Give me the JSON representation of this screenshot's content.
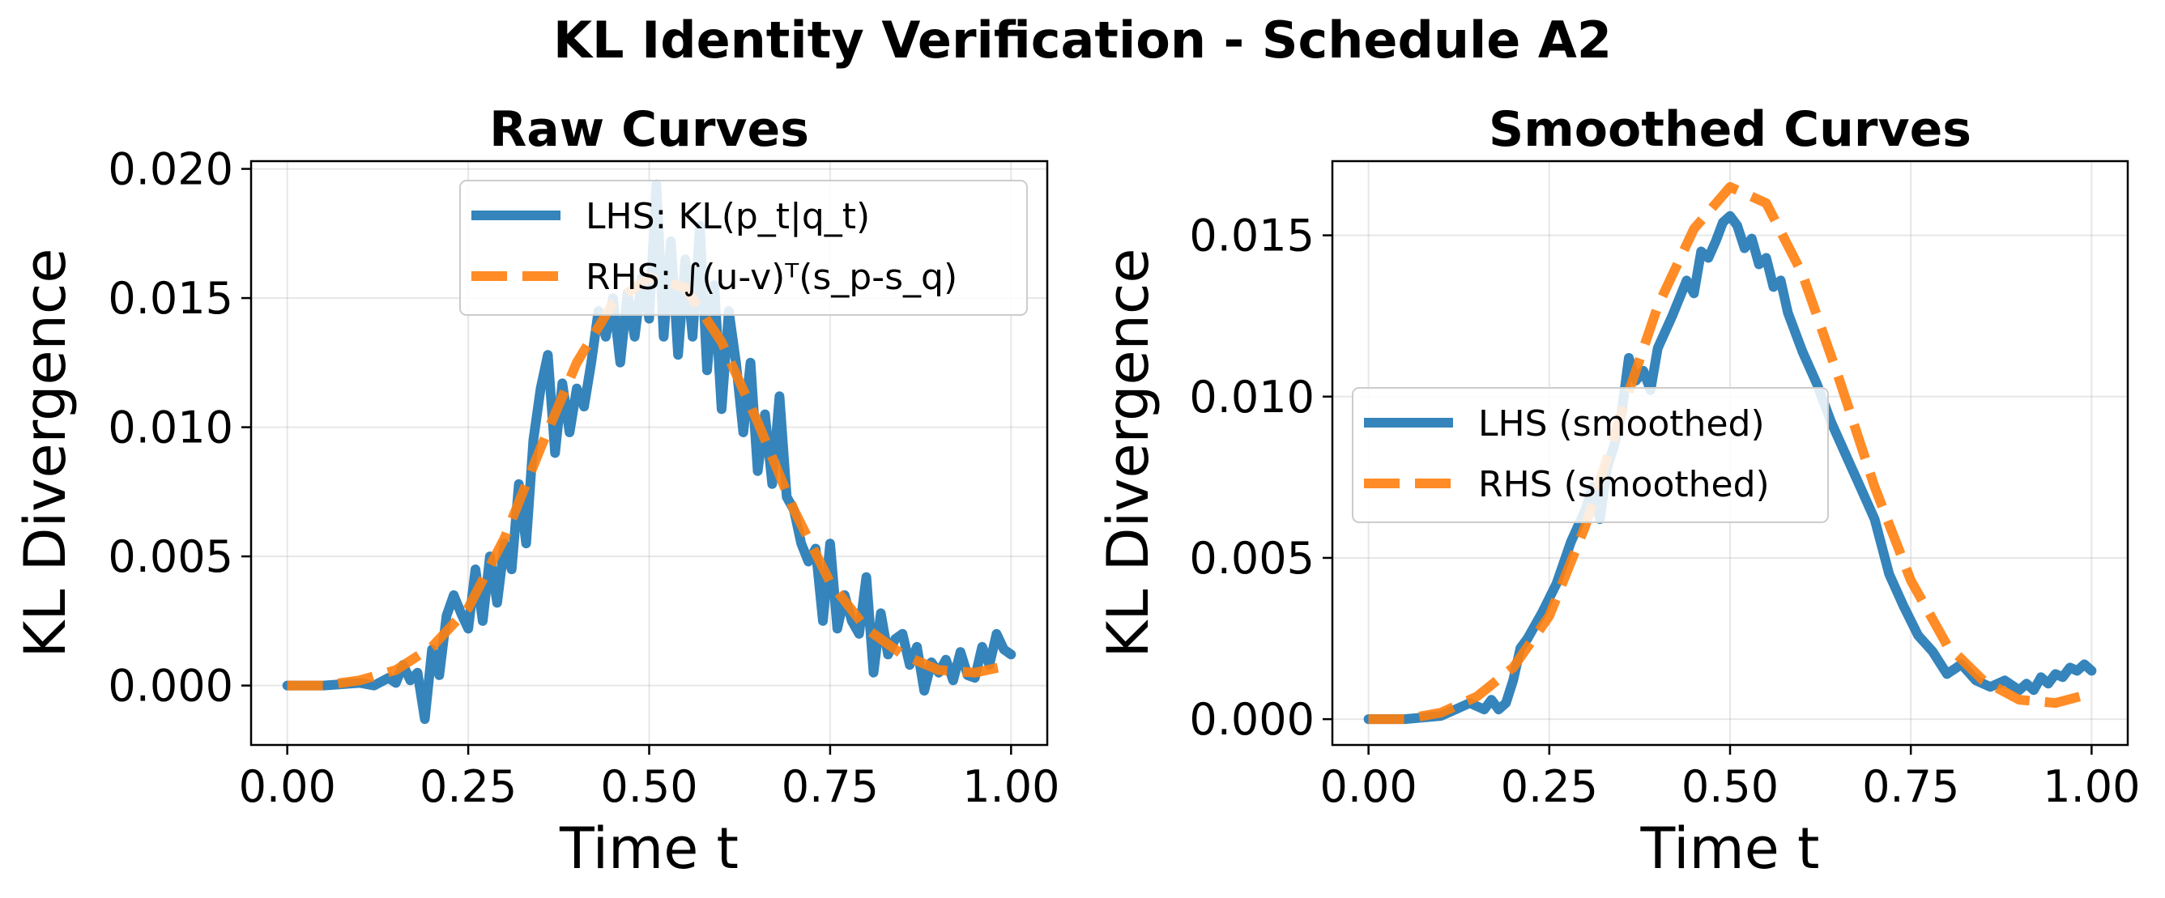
{
  "figure_title": "KL Identity Verification - Schedule A2",
  "colors": {
    "lhs": "#1f77b4",
    "rhs": "#ff7f0e"
  },
  "chart_data": [
    {
      "type": "line",
      "title": "Raw Curves",
      "xlabel": "Time t",
      "ylabel": "KL Divergence",
      "xlim": [
        -0.05,
        1.05
      ],
      "ylim": [
        -0.0023,
        0.0203
      ],
      "xticks": [
        "0.00",
        "0.25",
        "0.50",
        "0.75",
        "1.00"
      ],
      "xtick_values": [
        0,
        0.25,
        0.5,
        0.75,
        1.0
      ],
      "yticks": [
        "0.000",
        "0.005",
        "0.010",
        "0.015",
        "0.020"
      ],
      "ytick_values": [
        0,
        0.005,
        0.01,
        0.015,
        0.02
      ],
      "grid": true,
      "legend_position": "top-right",
      "series": [
        {
          "name": "LHS: KL(p_t|q_t)",
          "style": "solid",
          "x": [
            0,
            0.05,
            0.1,
            0.12,
            0.14,
            0.15,
            0.16,
            0.17,
            0.18,
            0.19,
            0.2,
            0.21,
            0.22,
            0.23,
            0.24,
            0.25,
            0.26,
            0.27,
            0.28,
            0.29,
            0.3,
            0.31,
            0.32,
            0.33,
            0.34,
            0.35,
            0.36,
            0.37,
            0.38,
            0.39,
            0.4,
            0.41,
            0.42,
            0.43,
            0.44,
            0.45,
            0.46,
            0.47,
            0.48,
            0.49,
            0.5,
            0.51,
            0.52,
            0.53,
            0.54,
            0.55,
            0.56,
            0.57,
            0.58,
            0.59,
            0.6,
            0.61,
            0.62,
            0.63,
            0.64,
            0.65,
            0.66,
            0.67,
            0.68,
            0.69,
            0.7,
            0.71,
            0.72,
            0.73,
            0.74,
            0.75,
            0.76,
            0.77,
            0.78,
            0.79,
            0.8,
            0.81,
            0.82,
            0.83,
            0.84,
            0.85,
            0.86,
            0.87,
            0.88,
            0.89,
            0.9,
            0.91,
            0.92,
            0.93,
            0.94,
            0.95,
            0.96,
            0.97,
            0.98,
            0.99,
            1.0
          ],
          "y": [
            0.0,
            0.0,
            0.0001,
            0.0,
            0.0003,
            0.0001,
            0.0008,
            0.0002,
            0.0005,
            -0.0013,
            0.0014,
            0.0004,
            0.0027,
            0.0035,
            0.0028,
            0.0022,
            0.0045,
            0.0025,
            0.005,
            0.0032,
            0.0055,
            0.0045,
            0.0078,
            0.0055,
            0.0095,
            0.0115,
            0.0128,
            0.009,
            0.0117,
            0.0098,
            0.0115,
            0.0108,
            0.0125,
            0.0145,
            0.0135,
            0.015,
            0.0125,
            0.0152,
            0.0135,
            0.0158,
            0.0142,
            0.0194,
            0.0135,
            0.0172,
            0.0128,
            0.0165,
            0.0135,
            0.0178,
            0.0122,
            0.0155,
            0.0107,
            0.0145,
            0.0125,
            0.0098,
            0.0125,
            0.0083,
            0.0105,
            0.0078,
            0.0112,
            0.0073,
            0.0068,
            0.0055,
            0.0048,
            0.0053,
            0.0025,
            0.0055,
            0.0022,
            0.0035,
            0.0025,
            0.002,
            0.0042,
            0.0005,
            0.0028,
            0.0012,
            0.0018,
            0.002,
            0.0008,
            0.0015,
            -0.0002,
            0.0009,
            0.0005,
            0.001,
            0.0002,
            0.0013,
            0.0004,
            0.0003,
            0.0015,
            0.0008,
            0.002,
            0.0014,
            0.0012
          ]
        },
        {
          "name": "RHS: ∫(u-v)ᵀ(s_p-s_q)",
          "style": "dashed",
          "x": [
            0,
            0.05,
            0.1,
            0.15,
            0.2,
            0.25,
            0.3,
            0.35,
            0.4,
            0.45,
            0.5,
            0.55,
            0.6,
            0.65,
            0.7,
            0.75,
            0.8,
            0.85,
            0.9,
            0.95,
            1.0
          ],
          "y": [
            0.0,
            0.0,
            0.0002,
            0.0006,
            0.0015,
            0.003,
            0.0057,
            0.0092,
            0.0125,
            0.0148,
            0.0158,
            0.0154,
            0.0133,
            0.0102,
            0.0068,
            0.004,
            0.0022,
            0.0012,
            0.0006,
            0.0005,
            0.0008
          ]
        }
      ]
    },
    {
      "type": "line",
      "title": "Smoothed Curves",
      "xlabel": "Time t",
      "ylabel": "KL Divergence",
      "xlim": [
        -0.05,
        1.05
      ],
      "ylim": [
        -0.0008,
        0.0173
      ],
      "xticks": [
        "0.00",
        "0.25",
        "0.50",
        "0.75",
        "1.00"
      ],
      "xtick_values": [
        0,
        0.25,
        0.5,
        0.75,
        1.0
      ],
      "yticks": [
        "0.000",
        "0.005",
        "0.010",
        "0.015"
      ],
      "ytick_values": [
        0,
        0.005,
        0.01,
        0.015
      ],
      "grid": true,
      "legend_position": "center-left",
      "series": [
        {
          "name": "LHS (smoothed)",
          "style": "solid",
          "x": [
            0,
            0.05,
            0.1,
            0.12,
            0.14,
            0.16,
            0.17,
            0.18,
            0.19,
            0.2,
            0.21,
            0.22,
            0.24,
            0.26,
            0.28,
            0.3,
            0.31,
            0.32,
            0.33,
            0.34,
            0.35,
            0.36,
            0.37,
            0.38,
            0.39,
            0.4,
            0.42,
            0.44,
            0.45,
            0.46,
            0.47,
            0.48,
            0.49,
            0.5,
            0.51,
            0.52,
            0.53,
            0.54,
            0.55,
            0.56,
            0.57,
            0.58,
            0.6,
            0.62,
            0.64,
            0.66,
            0.68,
            0.7,
            0.72,
            0.74,
            0.76,
            0.78,
            0.8,
            0.82,
            0.84,
            0.86,
            0.88,
            0.9,
            0.91,
            0.92,
            0.93,
            0.94,
            0.95,
            0.96,
            0.97,
            0.98,
            0.99,
            1.0
          ],
          "y": [
            0.0,
            0.0,
            0.0001,
            0.0003,
            0.0005,
            0.0003,
            0.0006,
            0.0003,
            0.0005,
            0.0012,
            0.0022,
            0.0025,
            0.0033,
            0.0042,
            0.0055,
            0.0065,
            0.0072,
            0.0062,
            0.0078,
            0.0085,
            0.0095,
            0.0112,
            0.0105,
            0.0108,
            0.0102,
            0.0115,
            0.0125,
            0.0136,
            0.0132,
            0.0145,
            0.0143,
            0.0148,
            0.0154,
            0.0156,
            0.0153,
            0.0146,
            0.0149,
            0.0141,
            0.0143,
            0.0134,
            0.0136,
            0.0126,
            0.0114,
            0.0104,
            0.0092,
            0.0082,
            0.0072,
            0.0062,
            0.0045,
            0.0035,
            0.0026,
            0.0021,
            0.0014,
            0.0017,
            0.0012,
            0.001,
            0.0012,
            0.0009,
            0.0011,
            0.0009,
            0.0013,
            0.0011,
            0.0014,
            0.0013,
            0.0016,
            0.0015,
            0.0017,
            0.0015
          ]
        },
        {
          "name": "RHS (smoothed)",
          "style": "dashed",
          "x": [
            0,
            0.05,
            0.1,
            0.15,
            0.2,
            0.25,
            0.3,
            0.35,
            0.4,
            0.45,
            0.5,
            0.55,
            0.6,
            0.65,
            0.7,
            0.75,
            0.8,
            0.85,
            0.9,
            0.95,
            1.0
          ],
          "y": [
            0.0,
            0.0,
            0.0002,
            0.0007,
            0.0016,
            0.0032,
            0.006,
            0.0095,
            0.0128,
            0.0152,
            0.0165,
            0.016,
            0.0138,
            0.0106,
            0.0072,
            0.0043,
            0.0023,
            0.0012,
            0.0006,
            0.0005,
            0.0008
          ]
        }
      ]
    }
  ]
}
